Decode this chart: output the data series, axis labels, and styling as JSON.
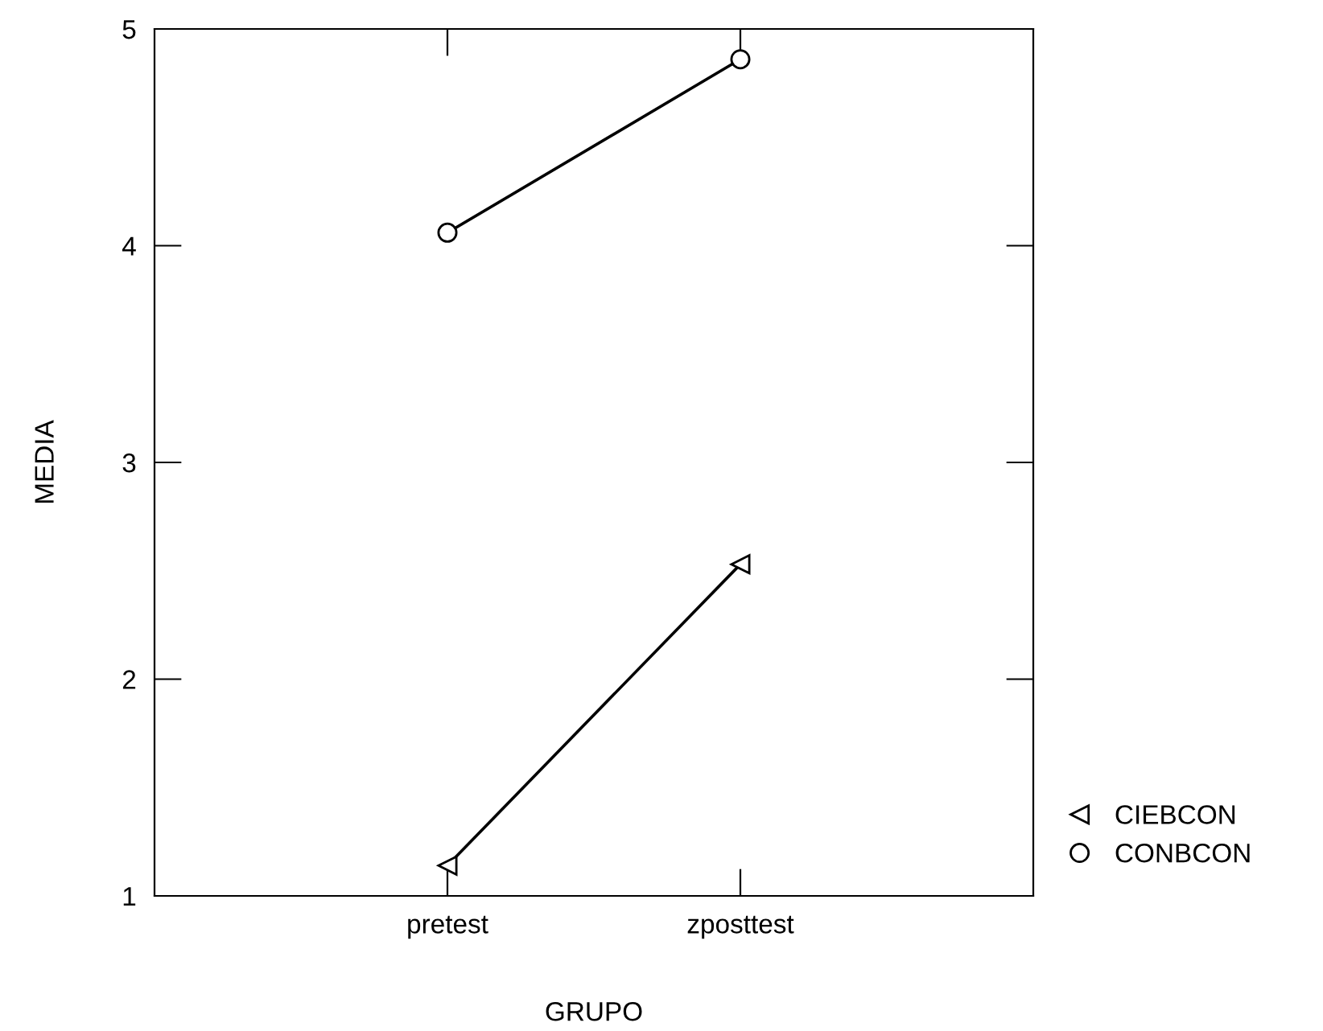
{
  "chart_data": {
    "type": "line",
    "xlabel": "GRUPO",
    "ylabel": "MEDIA",
    "categories": [
      "pretest",
      "zposttest"
    ],
    "series": [
      {
        "name": "CIEBCON",
        "color": "#000000",
        "marker": "triangle",
        "values": [
          1.14,
          2.53
        ]
      },
      {
        "name": "CONBCON",
        "color": "#000000",
        "marker": "circle",
        "values": [
          4.06,
          4.86
        ]
      }
    ],
    "ylim": [
      1,
      5
    ],
    "yticks": [
      1,
      2,
      3,
      4,
      5
    ],
    "grid": false,
    "legend": "bottom right",
    "line_style": "solid"
  }
}
